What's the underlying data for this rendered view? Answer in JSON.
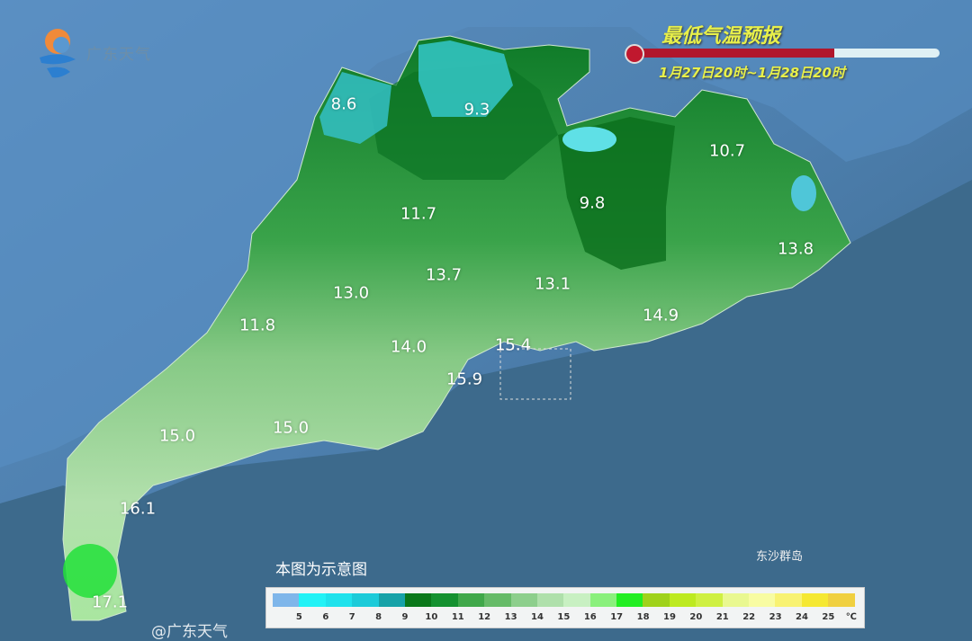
{
  "logo": {
    "text": "广东天气"
  },
  "header": {
    "title": "最低气温预报",
    "period": "1月27日20时~1月28日20时",
    "progress_fraction": 0.66
  },
  "map": {
    "labels": [
      "8.6",
      "9.3",
      "9.8",
      "10.7",
      "11.7",
      "13.8",
      "13.7",
      "13.1",
      "13.0",
      "11.8",
      "14.9",
      "14.0",
      "15.4",
      "15.9",
      "15.0",
      "15.0",
      "16.1",
      "17.1"
    ],
    "island_label": "东沙群岛",
    "note": "本图为示意图"
  },
  "legend": {
    "unit": "℃",
    "ticks": [
      "5",
      "6",
      "7",
      "8",
      "9",
      "10",
      "11",
      "12",
      "13",
      "14",
      "15",
      "16",
      "17",
      "18",
      "19",
      "20",
      "21",
      "22",
      "23",
      "24",
      "25"
    ],
    "colors": [
      "#7fb6ea",
      "#22f2f6",
      "#1fe2ec",
      "#1ccbd9",
      "#17a2a8",
      "#0a781a",
      "#14912f",
      "#40a84a",
      "#66bb68",
      "#8dcf8c",
      "#afe0ab",
      "#c8f0c2",
      "#8af07c",
      "#22ee22",
      "#9fd21a",
      "#bdea20",
      "#cff042",
      "#e9f890",
      "#f8fca2",
      "#f8f272",
      "#f5e832",
      "#f0d040"
    ]
  },
  "watermark": "@广东天气"
}
